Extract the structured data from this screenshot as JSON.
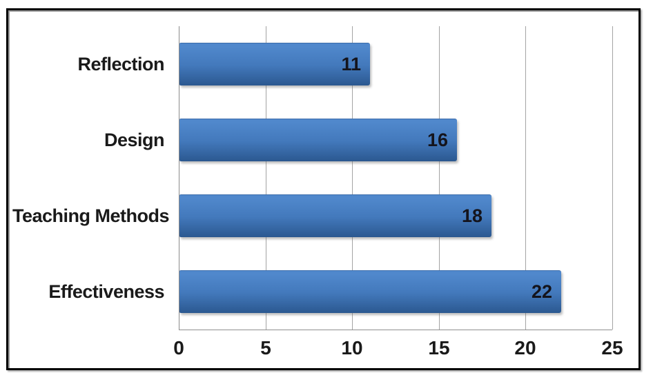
{
  "page": {
    "background_color": "#ffffff",
    "frame_border_color": "#000000"
  },
  "chart_data": {
    "type": "bar",
    "orientation": "horizontal",
    "title": "",
    "xlabel": "",
    "ylabel": "",
    "categories": [
      "Reflection",
      "Design",
      "Teaching Methods",
      "Effectiveness"
    ],
    "values": [
      11,
      16,
      18,
      22
    ],
    "data_labels": [
      "11",
      "16",
      "18",
      "22"
    ],
    "xlim": [
      0,
      25
    ],
    "x_tick_values": [
      0,
      5,
      10,
      15,
      20,
      25
    ],
    "x_tick_labels": [
      "0",
      "5",
      "10",
      "15",
      "20",
      "25"
    ],
    "grid": true,
    "legend": false,
    "data_labels_position": "inside-end",
    "colors": {
      "bar_top": "#5088cc",
      "bar_mid": "#4379bc",
      "bar_bottom": "#2b5890",
      "bar_border": "#3b6cab",
      "gridline": "#a3a3a3",
      "axis_line": "#8f8f8f",
      "category_text": "#1a1a1a",
      "tick_text": "#1a1a1a",
      "data_label_text": "#14141c"
    }
  }
}
